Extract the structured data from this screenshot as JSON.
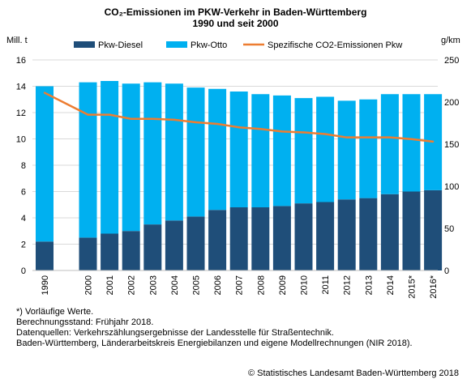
{
  "header": {
    "title_line1": "CO₂-Emissionen im PKW-Verkehr in Baden-Württemberg",
    "title_line2": "1990 und seit 2000",
    "unit_left": "Mill. t",
    "unit_right": "g/km"
  },
  "notes": {
    "line1": "*) Vorläufige Werte.",
    "line2": "Berechnungsstand: Frühjahr 2018.",
    "line3": "Datenquellen: Verkehrszählungsergebnisse der Landesstelle für Straßentechnik.",
    "line4": "Baden-Württemberg, Länderarbeitskreis Energiebilanzen und eigene Modellrechnungen (NIR 2018)."
  },
  "copyright": "© Statistisches Landesamt Baden-Württemberg 2018",
  "colors": {
    "diesel": "#1f4e79",
    "otto": "#00b0f0",
    "line": "#ed7d31",
    "grid": "#d9d9d9"
  },
  "chart_data": {
    "type": "bar",
    "stacked": true,
    "categories": [
      "1990",
      "2000",
      "2001",
      "2002",
      "2003",
      "2004",
      "2005",
      "2006",
      "2007",
      "2008",
      "2009",
      "2010",
      "2011",
      "2012",
      "2013",
      "2014",
      "2015*",
      "2016*"
    ],
    "series": [
      {
        "name": "Pkw-Diesel",
        "axis": "left",
        "values": [
          2.2,
          2.5,
          2.8,
          3.0,
          3.5,
          3.8,
          4.1,
          4.6,
          4.8,
          4.8,
          4.9,
          5.1,
          5.2,
          5.4,
          5.5,
          5.8,
          6.0,
          6.1
        ]
      },
      {
        "name": "Pkw-Otto",
        "axis": "left",
        "values": [
          11.8,
          11.8,
          11.6,
          11.2,
          10.8,
          10.4,
          9.8,
          9.2,
          8.8,
          8.6,
          8.4,
          8.0,
          8.0,
          7.5,
          7.5,
          7.6,
          7.4,
          7.3
        ]
      },
      {
        "name": "Spezifische CO2-Emissionen Pkw",
        "type": "line",
        "axis": "right",
        "values": [
          211,
          185,
          185,
          180,
          180,
          179,
          176,
          174,
          170,
          168,
          165,
          164,
          162,
          158,
          158,
          158,
          156,
          153
        ]
      }
    ],
    "left_axis": {
      "min": 0,
      "max": 16,
      "ticks": [
        "0",
        "2",
        "4",
        "6",
        "8",
        "10",
        "12",
        "14",
        "16"
      ]
    },
    "right_axis": {
      "min": 0,
      "max": 250,
      "ticks": [
        "0",
        "50",
        "100",
        "150",
        "200",
        "250"
      ]
    },
    "grid": true,
    "legend_position": "top"
  }
}
